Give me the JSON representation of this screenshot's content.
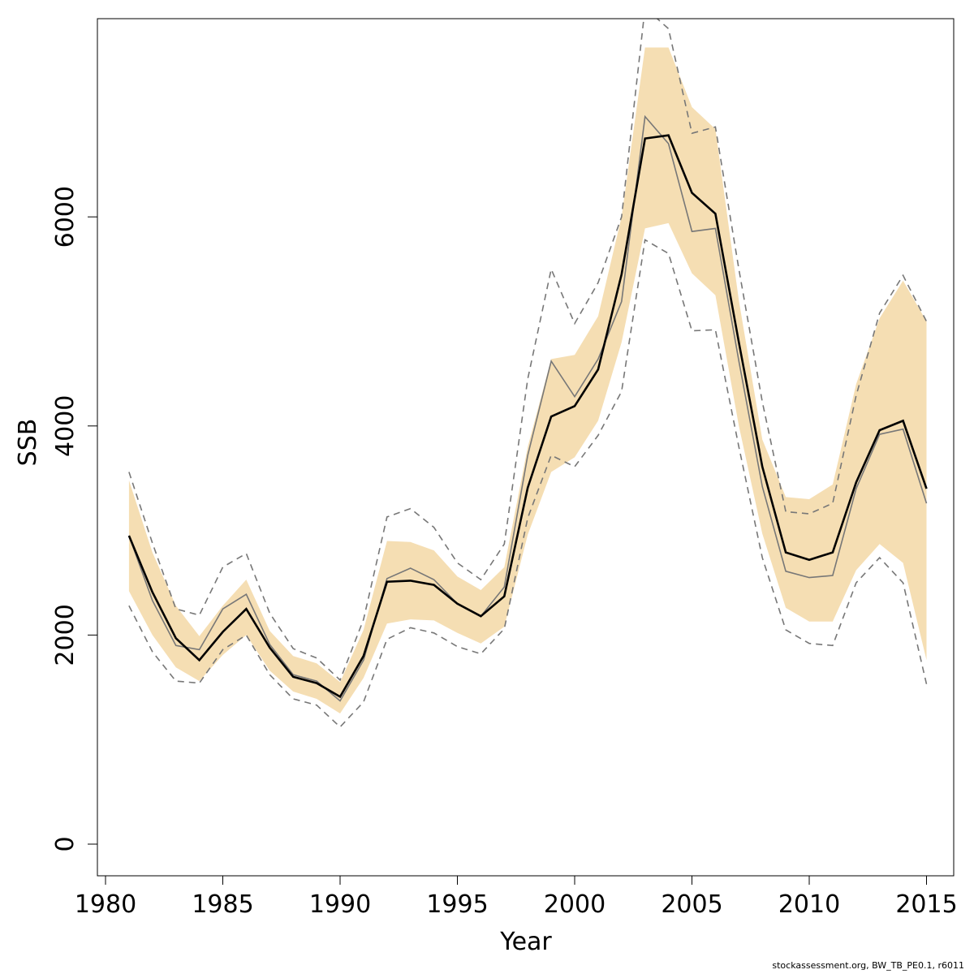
{
  "chart_data": {
    "type": "line",
    "xlabel": "Year",
    "ylabel": "SSB",
    "xlim": [
      1980,
      2015
    ],
    "ylim": [
      0,
      8000
    ],
    "x_ticks": [
      "1980",
      "1985",
      "1990",
      "1995",
      "2000",
      "2005",
      "2010",
      "2015"
    ],
    "y_ticks": [
      "0",
      "2000",
      "4000",
      "6000"
    ],
    "x": [
      1981,
      1982,
      1983,
      1984,
      1985,
      1986,
      1987,
      1988,
      1989,
      1990,
      1991,
      1992,
      1993,
      1994,
      1995,
      1996,
      1997,
      1998,
      1999,
      2000,
      2001,
      2002,
      2003,
      2004,
      2005,
      2006,
      2007,
      2008,
      2009,
      2010,
      2011,
      2012,
      2013,
      2014,
      2015
    ],
    "series": [
      {
        "role": "band",
        "color": "#f5deb3",
        "lower": [
          2420,
          2000,
          1690,
          1560,
          1810,
          2000,
          1660,
          1460,
          1390,
          1250,
          1590,
          2110,
          2150,
          2140,
          2020,
          1920,
          2080,
          2960,
          3560,
          3700,
          4050,
          4800,
          5890,
          5940,
          5460,
          5250,
          4000,
          2970,
          2260,
          2130,
          2130,
          2620,
          2870,
          2690,
          1760
        ],
        "upper": [
          3480,
          2790,
          2280,
          1990,
          2280,
          2530,
          2040,
          1800,
          1730,
          1550,
          2050,
          2900,
          2890,
          2810,
          2560,
          2430,
          2650,
          3800,
          4640,
          4680,
          5050,
          6000,
          7620,
          7620,
          7050,
          6840,
          5200,
          3870,
          3320,
          3300,
          3440,
          4400,
          5030,
          5390,
          5000
        ]
      },
      {
        "role": "lower-dashed",
        "color": "#777777",
        "values": [
          2280,
          1840,
          1560,
          1540,
          1860,
          2000,
          1620,
          1390,
          1330,
          1120,
          1360,
          1960,
          2070,
          2020,
          1890,
          1820,
          2060,
          3120,
          3720,
          3610,
          3910,
          4330,
          5780,
          5650,
          4910,
          4920,
          3800,
          2740,
          2050,
          1920,
          1900,
          2500,
          2740,
          2500,
          1530
        ]
      },
      {
        "role": "upper-dashed",
        "color": "#777777",
        "values": [
          3560,
          2880,
          2250,
          2190,
          2650,
          2780,
          2210,
          1870,
          1780,
          1570,
          2150,
          3130,
          3210,
          3030,
          2690,
          2530,
          2870,
          4450,
          5500,
          4980,
          5370,
          6000,
          8000,
          7800,
          6800,
          6860,
          5500,
          4230,
          3180,
          3160,
          3260,
          4290,
          5080,
          5440,
          5000
        ]
      },
      {
        "role": "alternate-run",
        "color": "#777777",
        "values": [
          2950,
          2330,
          1900,
          1860,
          2250,
          2390,
          1910,
          1620,
          1560,
          1370,
          1760,
          2540,
          2640,
          2530,
          2300,
          2180,
          2460,
          3720,
          4620,
          4280,
          4640,
          5190,
          6960,
          6700,
          5860,
          5890,
          4620,
          3420,
          2610,
          2550,
          2570,
          3400,
          3920,
          3970,
          3260
        ]
      },
      {
        "role": "central",
        "color": "#000000",
        "values": [
          2950,
          2410,
          1970,
          1760,
          2030,
          2250,
          1880,
          1600,
          1540,
          1410,
          1800,
          2510,
          2520,
          2480,
          2300,
          2180,
          2370,
          3410,
          4090,
          4190,
          4540,
          5450,
          6750,
          6780,
          6230,
          6030,
          4800,
          3610,
          2790,
          2720,
          2790,
          3460,
          3960,
          4050,
          3400
        ]
      }
    ]
  },
  "footer": {
    "note": "stockassessment.org, BW_TB_PE0.1, r6011"
  }
}
